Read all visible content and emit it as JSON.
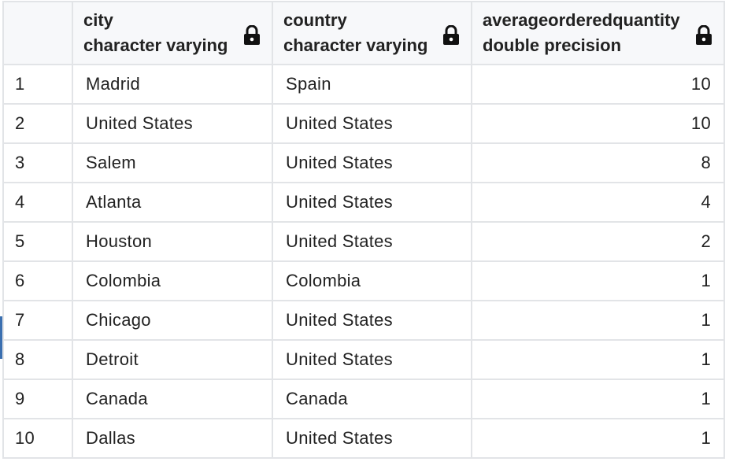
{
  "columns": [
    {
      "name": "city",
      "type": "character varying",
      "icon": "lock-icon"
    },
    {
      "name": "country",
      "type": "character varying",
      "icon": "lock-icon"
    },
    {
      "name": "averageorderedquantity",
      "type": "double precision",
      "icon": "lock-icon"
    }
  ],
  "rows": [
    {
      "n": "1",
      "city": "Madrid",
      "country": "Spain",
      "avg": "10"
    },
    {
      "n": "2",
      "city": "United States",
      "country": "United States",
      "avg": "10"
    },
    {
      "n": "3",
      "city": "Salem",
      "country": "United States",
      "avg": "8"
    },
    {
      "n": "4",
      "city": "Atlanta",
      "country": "United States",
      "avg": "4"
    },
    {
      "n": "5",
      "city": "Houston",
      "country": "United States",
      "avg": "2"
    },
    {
      "n": "6",
      "city": "Colombia",
      "country": "Colombia",
      "avg": "1"
    },
    {
      "n": "7",
      "city": "Chicago",
      "country": "United States",
      "avg": "1"
    },
    {
      "n": "8",
      "city": "Detroit",
      "country": "United States",
      "avg": "1"
    },
    {
      "n": "9",
      "city": "Canada",
      "country": "Canada",
      "avg": "1"
    },
    {
      "n": "10",
      "city": "Dallas",
      "country": "United States",
      "avg": "1"
    }
  ],
  "colors": {
    "border": "#e2e4e7",
    "header_bg": "#f7f8fa",
    "selection_marker": "#3a6fb0"
  }
}
